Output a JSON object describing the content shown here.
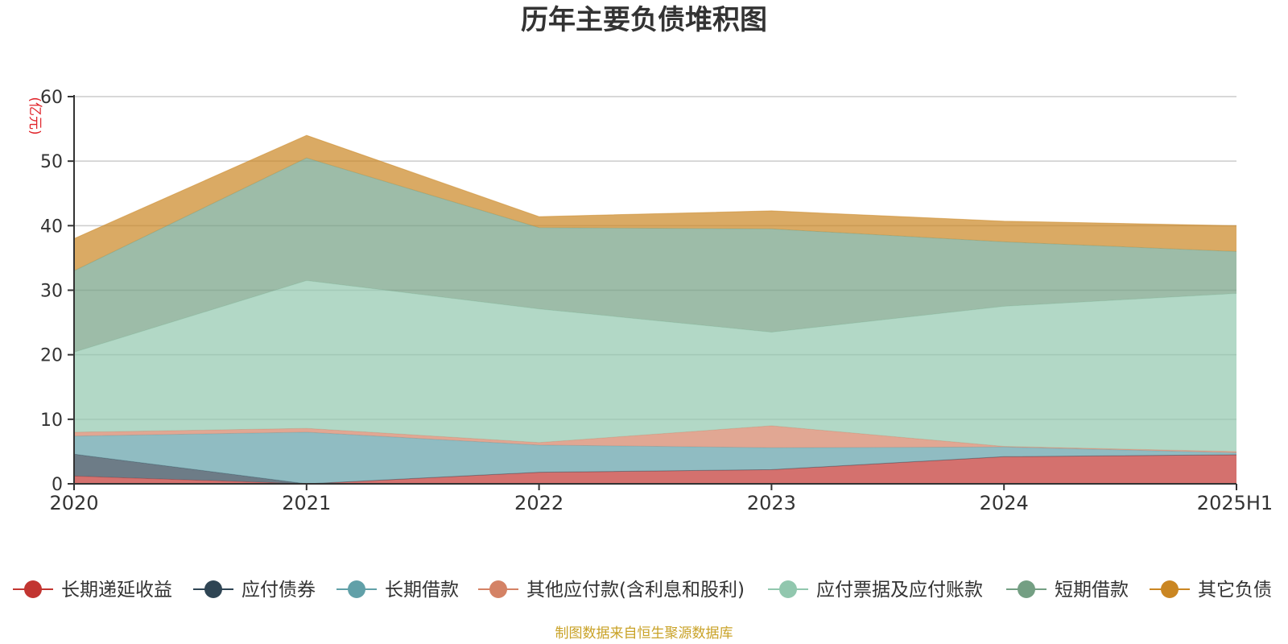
{
  "chart_data": {
    "type": "area",
    "stacked": true,
    "title": "历年主要负债堆积图",
    "ylabel": "(亿元)",
    "categories": [
      "2020",
      "2021",
      "2022",
      "2023",
      "2024",
      "2025H1"
    ],
    "ylim": [
      0,
      60
    ],
    "yticks": [
      0,
      10,
      20,
      30,
      40,
      50,
      60
    ],
    "grid": true,
    "legend_position": "bottom",
    "series": [
      {
        "name": "长期递延收益",
        "color": "#c23531",
        "values": [
          1.2,
          0.0,
          1.8,
          2.2,
          4.2,
          4.5
        ]
      },
      {
        "name": "应付债券",
        "color": "#2f4554",
        "values": [
          3.4,
          0.0,
          0.0,
          0.0,
          0.0,
          0.0
        ]
      },
      {
        "name": "长期借款",
        "color": "#61a0a8",
        "values": [
          2.8,
          8.0,
          4.2,
          3.4,
          1.5,
          0.3
        ]
      },
      {
        "name": "其他应付款(含利息和股利)",
        "color": "#d48265",
        "values": [
          0.6,
          0.6,
          0.4,
          3.4,
          0.1,
          0.2
        ]
      },
      {
        "name": "应付票据及应付账款",
        "color": "#91c7ae",
        "values": [
          12.4,
          22.9,
          20.7,
          14.5,
          21.7,
          24.5
        ]
      },
      {
        "name": "短期借款",
        "color": "#749f83",
        "values": [
          12.6,
          19.0,
          12.6,
          16.0,
          10.0,
          6.5
        ]
      },
      {
        "name": "其它负债",
        "color": "#ca8622",
        "values": [
          5.0,
          3.5,
          1.7,
          2.8,
          3.2,
          4.0
        ]
      }
    ]
  },
  "footer": {
    "source": "制图数据来自恒生聚源数据库"
  }
}
